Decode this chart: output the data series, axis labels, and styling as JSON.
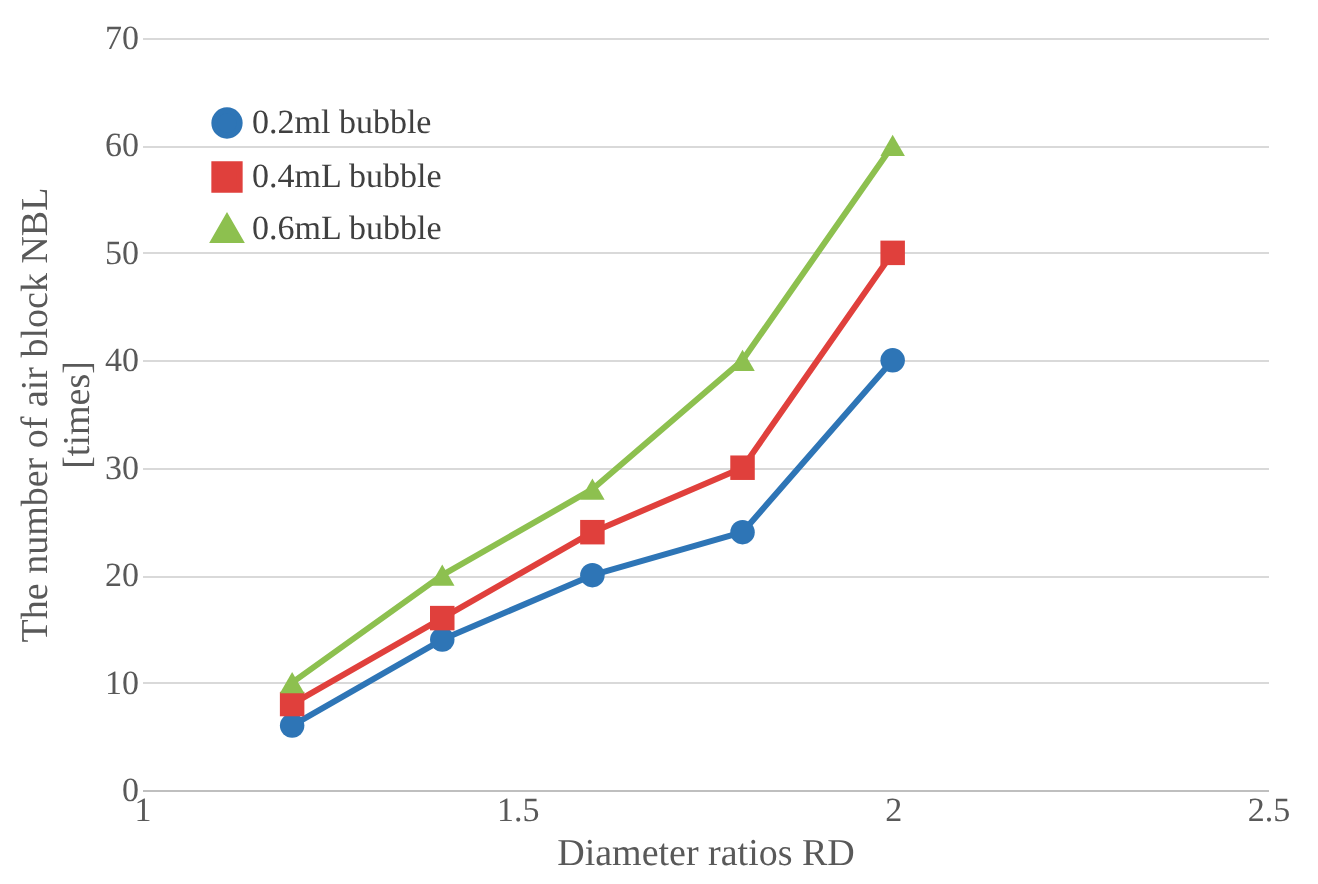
{
  "chart_data": {
    "type": "line",
    "xlabel": "Diameter ratios RD",
    "ylabel": "The number of air block NBL\n[times]",
    "x": [
      1.2,
      1.4,
      1.6,
      1.8,
      2.0
    ],
    "series": [
      {
        "name": "0.2ml bubble",
        "color": "#2e75b6",
        "marker": "circle",
        "values": [
          6,
          14,
          20,
          24,
          40
        ]
      },
      {
        "name": "0.4mL bubble",
        "color": "#e0403c",
        "marker": "square",
        "values": [
          8,
          16,
          24,
          30,
          50
        ]
      },
      {
        "name": "0.6mL bubble",
        "color": "#8dc04f",
        "marker": "triangle",
        "values": [
          10,
          20,
          28,
          40,
          60
        ]
      }
    ],
    "xlim": [
      1,
      2.5
    ],
    "xticks": [
      1,
      1.5,
      2,
      2.5
    ],
    "ylim": [
      0,
      70
    ],
    "yticks": [
      0,
      10,
      20,
      30,
      40,
      50,
      60,
      70
    ],
    "grid": "y",
    "legend": "top left",
    "line_style": "solid"
  }
}
